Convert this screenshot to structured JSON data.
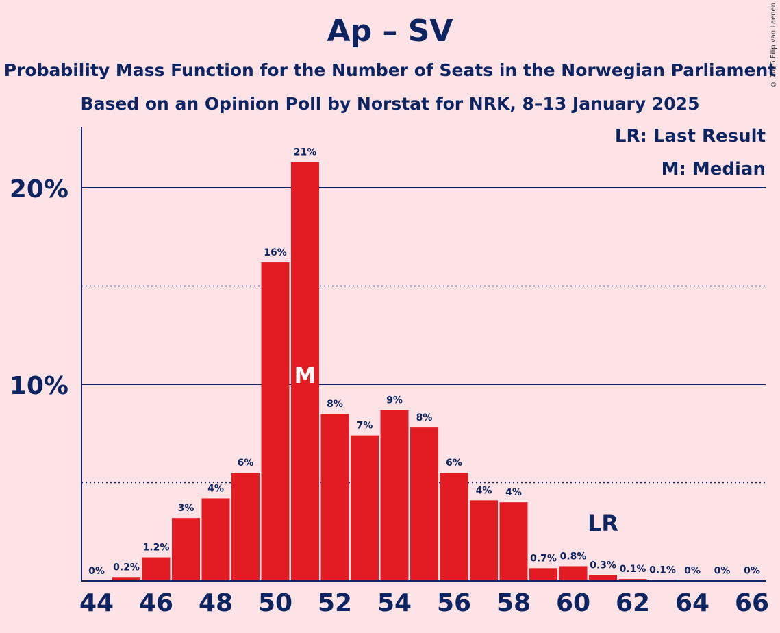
{
  "header": {
    "title": "Ap – SV",
    "subtitle_line1": "Probability Mass Function for the Number of Seats in the Norwegian Parliament",
    "subtitle_line2": "Based on an Opinion Poll by Norstat for NRK, 8–13 January 2025"
  },
  "copyright": "© 2025 Filip van Laenen",
  "legend": {
    "last_result": "LR: Last Result",
    "median": "M: Median"
  },
  "chart_data": {
    "type": "bar",
    "categories": [
      44,
      45,
      46,
      47,
      48,
      49,
      50,
      51,
      52,
      53,
      54,
      55,
      56,
      57,
      58,
      59,
      60,
      61,
      62,
      63,
      64,
      65,
      66
    ],
    "values": [
      0,
      0.2,
      1.2,
      3.2,
      4.2,
      5.5,
      16.2,
      21.3,
      8.5,
      7.4,
      8.7,
      7.8,
      5.5,
      4.1,
      4.0,
      0.65,
      0.75,
      0.3,
      0.1,
      0.05,
      0.02,
      0.01,
      0.01
    ],
    "data_labels": [
      "0%",
      "0.2%",
      "1.2%",
      "3%",
      "4%",
      "6%",
      "16%",
      "21%",
      "8%",
      "7%",
      "9%",
      "8%",
      "6%",
      "4%",
      "4%",
      "0.7%",
      "0.8%",
      "0.3%",
      "0.1%",
      "0.1%",
      "0%",
      "0%",
      "0%"
    ],
    "x_tick_labels": [
      "44",
      "46",
      "48",
      "50",
      "52",
      "54",
      "56",
      "58",
      "60",
      "62",
      "64",
      "66"
    ],
    "y_tick_labels": [
      "10%",
      "20%"
    ],
    "y_ticks": [
      10,
      20
    ],
    "y_minor_gridlines": [
      5,
      15
    ],
    "ylim": [
      0,
      23.2
    ],
    "median_seat": 51,
    "median_marker": "M",
    "last_result_seat": 61,
    "last_result_marker": "LR",
    "bar_color": "#e31b23",
    "axis_color": "#0c2461",
    "background_color": "#fde3e6"
  }
}
